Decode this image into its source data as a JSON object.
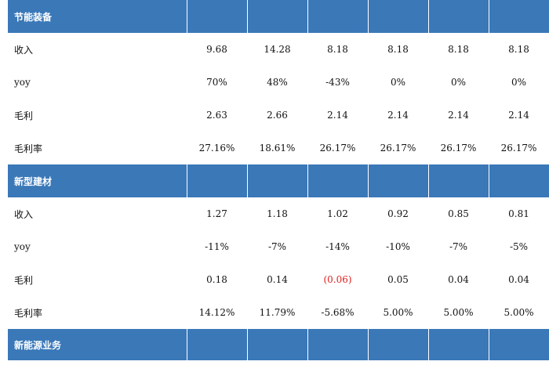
{
  "sections": [
    {
      "title": "节能装备",
      "rows": [
        {
          "label": "收入",
          "values": [
            "9.68",
            "14.28",
            "8.18",
            "8.18",
            "8.18",
            "8.18"
          ]
        },
        {
          "label": "yoy",
          "values": [
            "70%",
            "48%",
            "-43%",
            "0%",
            "0%",
            "0%"
          ]
        },
        {
          "label": "毛利",
          "values": [
            "2.63",
            "2.66",
            "2.14",
            "2.14",
            "2.14",
            "2.14"
          ]
        },
        {
          "label": "毛利率",
          "values": [
            "27.16%",
            "18.61%",
            "26.17%",
            "26.17%",
            "26.17%",
            "26.17%"
          ]
        }
      ]
    },
    {
      "title": "新型建材",
      "rows": [
        {
          "label": "收入",
          "values": [
            "1.27",
            "1.18",
            "1.02",
            "0.92",
            "0.85",
            "0.81"
          ]
        },
        {
          "label": "yoy",
          "values": [
            "-11%",
            "-7%",
            "-14%",
            "-10%",
            "-7%",
            "-5%"
          ]
        },
        {
          "label": "毛利",
          "values": [
            "0.18",
            "0.14",
            "(0.06)",
            "0.05",
            "0.04",
            "0.04"
          ]
        },
        {
          "label": "毛利率",
          "values": [
            "14.12%",
            "11.79%",
            "-5.68%",
            "5.00%",
            "5.00%",
            "5.00%"
          ]
        }
      ]
    },
    {
      "title": "新能源业务",
      "rows": []
    }
  ],
  "colors": {
    "header_bg": "#3a78b8",
    "negative": "#e02020"
  }
}
